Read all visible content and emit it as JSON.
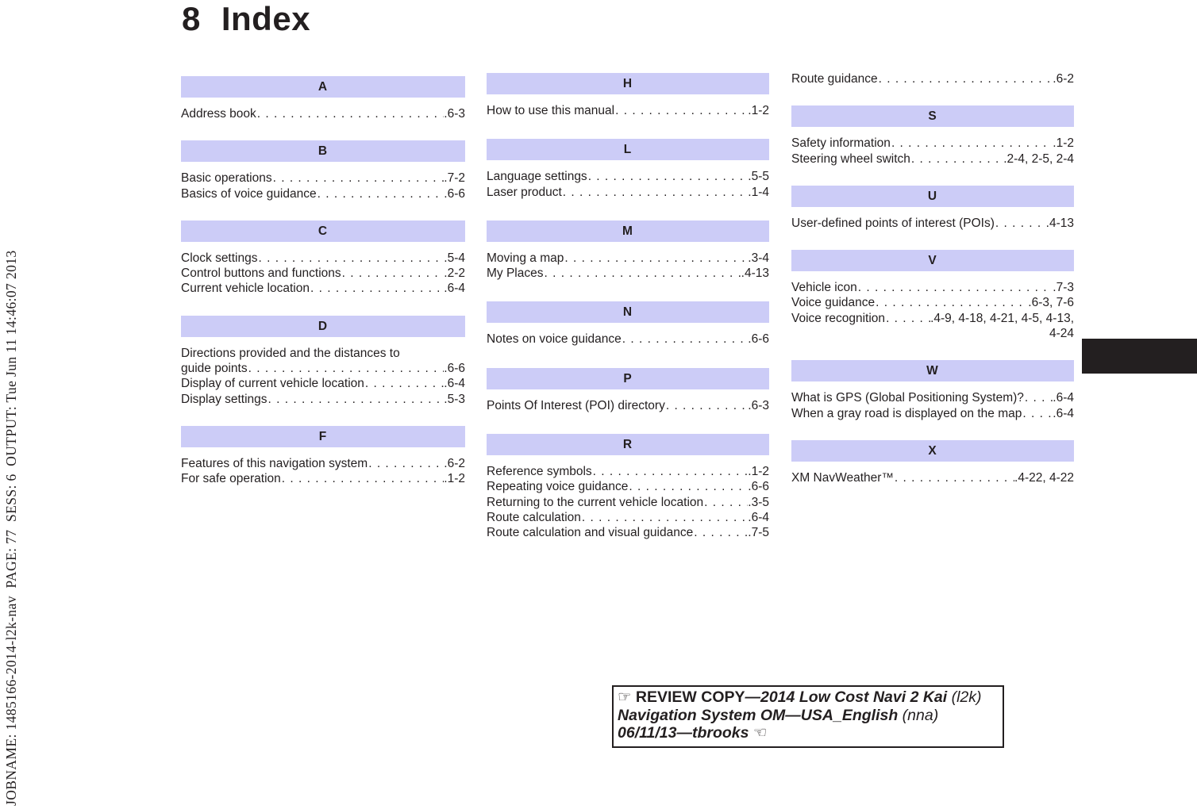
{
  "colors": {
    "header_bg": "#ccccf7",
    "text": "#231f20",
    "tab_marker": "#231f20"
  },
  "header": {
    "chapter_number": "8",
    "title": "Index"
  },
  "sidebar": {
    "job_info": "JOBNAME: 1485166-2014-l2k-nav  PAGE: 77  SESS: 6  OUTPUT: Tue Jun 11 14:46:07 2013"
  },
  "columns": [
    {
      "sections": [
        {
          "letter": "A",
          "entries": [
            {
              "label": "Address book",
              "page": ".6-3"
            }
          ]
        },
        {
          "letter": "B",
          "entries": [
            {
              "label": "Basic operations",
              "page": ".7-2"
            },
            {
              "label": "Basics of voice guidance",
              "page": ".6-6"
            }
          ]
        },
        {
          "letter": "C",
          "entries": [
            {
              "label": "Clock settings",
              "page": ".5-4"
            },
            {
              "label": "Control buttons and functions",
              "page": ".2-2"
            },
            {
              "label": "Current vehicle location",
              "page": ".6-4"
            }
          ]
        },
        {
          "letter": "D",
          "entries": [
            {
              "pre_line": "Directions provided and the distances to",
              "label": "guide points",
              "page": ".6-6"
            },
            {
              "label": "Display of current vehicle location",
              "page": ".6-4"
            },
            {
              "label": "Display settings",
              "page": ".5-3"
            }
          ]
        },
        {
          "letter": "F",
          "entries": [
            {
              "label": "Features of this navigation system",
              "page": ".6-2"
            },
            {
              "label": "For safe operation",
              "page": ".1-2"
            }
          ]
        }
      ]
    },
    {
      "sections": [
        {
          "letter": "H",
          "entries": [
            {
              "label": "How to use this manual",
              "page": ".1-2"
            }
          ]
        },
        {
          "letter": "L",
          "entries": [
            {
              "label": "Language settings",
              "page": ".5-5"
            },
            {
              "label": "Laser product",
              "page": ".1-4"
            }
          ]
        },
        {
          "letter": "M",
          "entries": [
            {
              "label": "Moving a map",
              "page": ".3-4"
            },
            {
              "label": "My Places",
              "page": ".4-13"
            }
          ]
        },
        {
          "letter": "N",
          "entries": [
            {
              "label": "Notes on voice guidance",
              "page": ".6-6"
            }
          ]
        },
        {
          "letter": "P",
          "entries": [
            {
              "label": "Points Of Interest (POI) directory",
              "page": ".6-3"
            }
          ]
        },
        {
          "letter": "R",
          "entries": [
            {
              "label": "Reference symbols",
              "page": ".1-2"
            },
            {
              "label": "Repeating voice guidance",
              "page": ".6-6"
            },
            {
              "label": "Returning to the current vehicle location",
              "page": ".3-5"
            },
            {
              "label": "Route calculation",
              "page": ".6-4"
            },
            {
              "label": "Route calculation and visual guidance",
              "page": ".7-5"
            }
          ]
        }
      ]
    },
    {
      "sections": [
        {
          "letter": null,
          "entries": [
            {
              "label": "Route guidance",
              "page": ".6-2"
            }
          ]
        },
        {
          "letter": "S",
          "entries": [
            {
              "label": "Safety information",
              "page": ".1-2"
            },
            {
              "label": "Steering wheel switch",
              "page": ".2-4, 2-5, 2-4"
            }
          ]
        },
        {
          "letter": "U",
          "entries": [
            {
              "label": "User-defined points of interest (POIs)",
              "page": ".4-13"
            }
          ]
        },
        {
          "letter": "V",
          "entries": [
            {
              "label": "Vehicle icon",
              "page": ".7-3"
            },
            {
              "label": "Voice guidance",
              "page": ".6-3, 7-6"
            },
            {
              "label": "Voice recognition",
              "page": ".4-9, 4-18, 4-21, 4-5, 4-13,",
              "page_overflow": "4-24"
            }
          ]
        },
        {
          "letter": "W",
          "entries": [
            {
              "label": "What is GPS (Global Positioning System)?",
              "page": ".6-4"
            },
            {
              "label": "When a gray road is displayed on the map",
              "page": ".6-4"
            }
          ]
        },
        {
          "letter": "X",
          "entries": [
            {
              "label": "XM NavWeather™",
              "page": ".4-22, 4-22"
            }
          ]
        }
      ]
    }
  ],
  "review_box": {
    "hand_right_icon": "☞",
    "hand_left_icon": "☜",
    "title_bold": "REVIEW COPY",
    "title_italic": "—2014 Low Cost Navi 2 Kai",
    "title_light": " (l2k)",
    "line2_italic": "Navigation System OM—USA_English",
    "line2_light": " (nna)",
    "line3_italic": "06/11/13—tbrooks"
  }
}
